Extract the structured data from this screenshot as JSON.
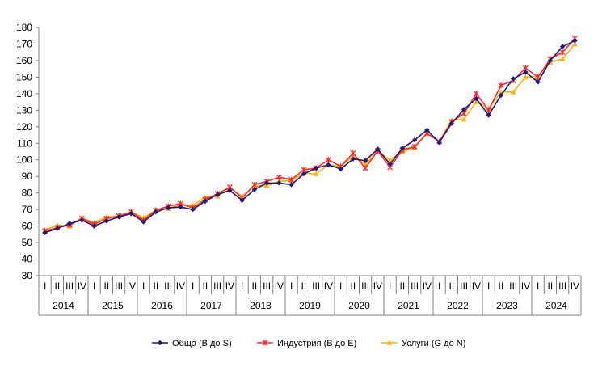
{
  "chart_data": {
    "type": "line",
    "title": "",
    "xlabel": "",
    "ylabel": "",
    "ylim": [
      30,
      180
    ],
    "yticks": [
      30,
      40,
      50,
      60,
      70,
      80,
      90,
      100,
      110,
      120,
      130,
      140,
      150,
      160,
      170,
      180
    ],
    "grid": false,
    "legend_position": "bottom",
    "years": [
      "2014",
      "2015",
      "2016",
      "2017",
      "2018",
      "2019",
      "2020",
      "2021",
      "2022",
      "2023",
      "2024"
    ],
    "quarters": [
      "I",
      "II",
      "III",
      "IV"
    ],
    "series": [
      {
        "name": "Общо (B до S)",
        "color": "#1f1a7a",
        "marker": "diamond",
        "values": [
          56,
          58.5,
          61.5,
          63.5,
          60,
          63,
          65.5,
          67.5,
          62.5,
          68.5,
          71,
          71.5,
          70,
          75,
          79,
          81.5,
          75.5,
          82,
          86,
          86,
          85,
          91.5,
          95,
          97,
          94.5,
          100.5,
          99.5,
          106.5,
          97.5,
          107,
          112,
          118,
          110.5,
          122,
          130.5,
          137,
          127,
          139,
          149,
          153,
          147,
          160,
          168.5,
          172
        ]
      },
      {
        "name": "Индустрия (B до E)",
        "color": "#ff2a2a",
        "marker": "star",
        "values": [
          57,
          59,
          60.5,
          64.5,
          61,
          64.5,
          66,
          68.5,
          63.5,
          69.5,
          72,
          73.5,
          71,
          76,
          79.5,
          83.5,
          77,
          85,
          87,
          89.5,
          88,
          94,
          95,
          100,
          96,
          104,
          95,
          105.5,
          95.5,
          106,
          108,
          116,
          111,
          123,
          128,
          140,
          130,
          145,
          148,
          155.5,
          150,
          161,
          165,
          173.5
        ]
      },
      {
        "name": "Услуги (G до N)",
        "color": "#ffb000",
        "marker": "triangle",
        "values": [
          57.5,
          60.5,
          60,
          65,
          62,
          65.5,
          66,
          68.5,
          65,
          69.5,
          70.5,
          73,
          72.5,
          77.5,
          78,
          83,
          78,
          84,
          84.5,
          87,
          87.5,
          92,
          91.5,
          97,
          96,
          102,
          97.5,
          105,
          100,
          105,
          107.5,
          116,
          111,
          124,
          124.5,
          135,
          131,
          141,
          141,
          150,
          150.5,
          159,
          161,
          170
        ]
      }
    ]
  }
}
